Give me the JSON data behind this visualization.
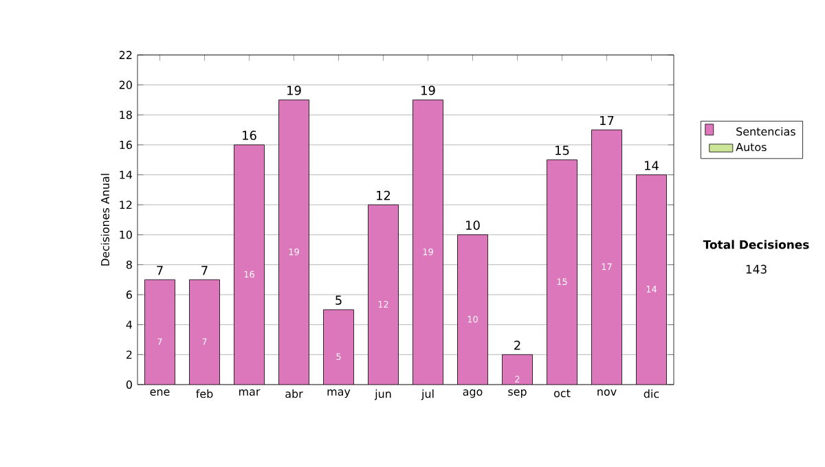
{
  "chart_data": {
    "type": "bar",
    "ylabel": "Decisiones Anual",
    "categories": [
      "ene",
      "feb",
      "mar",
      "abr",
      "may",
      "jun",
      "jul",
      "ago",
      "sep",
      "oct",
      "nov",
      "dic"
    ],
    "series": [
      {
        "name": "Sentencias",
        "color": "#dd77bb",
        "values": [
          7,
          7,
          16,
          19,
          5,
          12,
          19,
          10,
          2,
          15,
          17,
          14
        ]
      },
      {
        "name": "Autos",
        "color": "#cce699",
        "values": [
          null,
          null,
          null,
          null,
          null,
          null,
          null,
          null,
          null,
          null,
          null,
          null
        ]
      }
    ],
    "stacked": true,
    "data_labels": true,
    "totals": [
      "7",
      "7",
      "16",
      "19",
      "5",
      "12",
      "19",
      "10",
      "2",
      "15",
      "17",
      "14"
    ],
    "ylim": [
      0,
      22
    ],
    "yticks": [
      0,
      2,
      4,
      6,
      8,
      10,
      12,
      14,
      16,
      18,
      20,
      22
    ],
    "grid": "y",
    "legend": "right",
    "annotations": [
      "Total Decisiones",
      "143"
    ]
  }
}
